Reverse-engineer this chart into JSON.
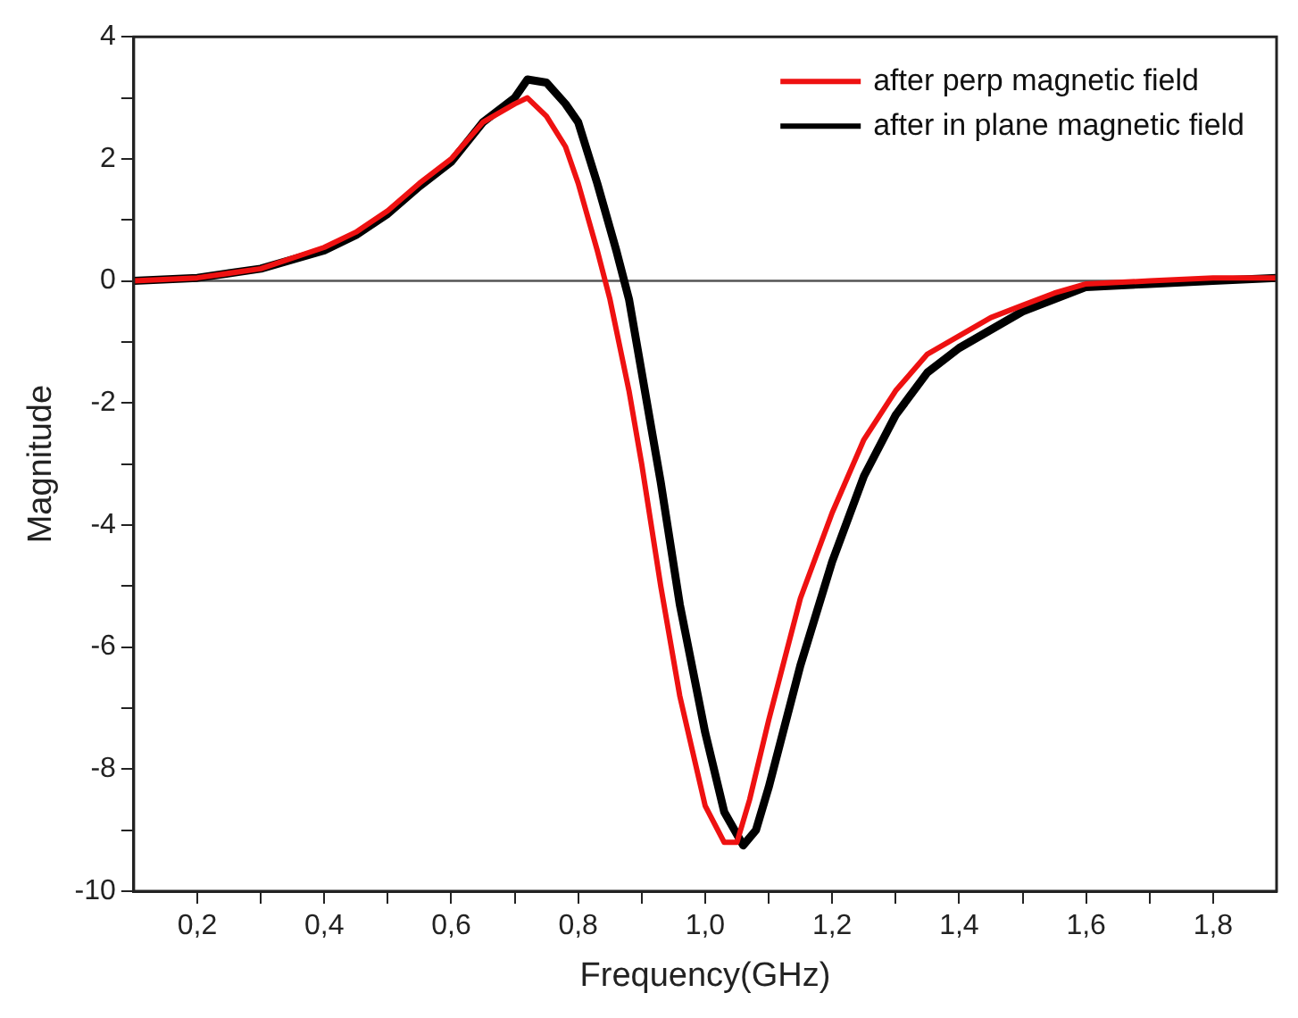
{
  "chart_data": {
    "type": "line",
    "xlabel": "Frequency(GHz)",
    "ylabel": "Magnitude",
    "legend": "top right",
    "grid": false,
    "marker": "none",
    "line_style": "solid",
    "xlim": [
      0.1,
      1.9
    ],
    "ylim": [
      -10,
      4
    ],
    "xticks": [
      {
        "value": 0.2,
        "label": "0,2"
      },
      {
        "value": 0.3,
        "label": null
      },
      {
        "value": 0.4,
        "label": "0,4"
      },
      {
        "value": 0.5,
        "label": null
      },
      {
        "value": 0.6,
        "label": "0,6"
      },
      {
        "value": 0.7,
        "label": null
      },
      {
        "value": 0.8,
        "label": "0,8"
      },
      {
        "value": 0.9,
        "label": null
      },
      {
        "value": 1.0,
        "label": "1,0"
      },
      {
        "value": 1.1,
        "label": null
      },
      {
        "value": 1.2,
        "label": "1,2"
      },
      {
        "value": 1.3,
        "label": null
      },
      {
        "value": 1.4,
        "label": "1,4"
      },
      {
        "value": 1.5,
        "label": null
      },
      {
        "value": 1.6,
        "label": "1,6"
      },
      {
        "value": 1.7,
        "label": null
      },
      {
        "value": 1.8,
        "label": "1,8"
      }
    ],
    "yticks": [
      -10,
      {
        "value": -9,
        "label": null
      },
      -8,
      {
        "value": -7,
        "label": null
      },
      -6,
      {
        "value": -5,
        "label": null
      },
      -4,
      {
        "value": -3,
        "label": null
      },
      -2,
      {
        "value": -1,
        "label": null
      },
      0,
      {
        "value": 1,
        "label": null
      },
      2,
      {
        "value": 3,
        "label": null
      },
      4
    ],
    "ref_lines": [
      {
        "axis": "y",
        "value": 0,
        "color": "#555555",
        "line_style": "solid"
      }
    ],
    "series": [
      {
        "name": "after perp magnetic field",
        "color": "#ee1111",
        "x": [
          0.1,
          0.2,
          0.3,
          0.4,
          0.45,
          0.5,
          0.55,
          0.6,
          0.65,
          0.7,
          0.72,
          0.75,
          0.78,
          0.8,
          0.83,
          0.85,
          0.88,
          0.9,
          0.93,
          0.96,
          1.0,
          1.03,
          1.05,
          1.07,
          1.1,
          1.15,
          1.2,
          1.25,
          1.3,
          1.35,
          1.4,
          1.45,
          1.5,
          1.55,
          1.6,
          1.7,
          1.8,
          1.9
        ],
        "values": [
          0,
          0.05,
          0.2,
          0.55,
          0.8,
          1.15,
          1.6,
          2.0,
          2.6,
          2.9,
          3.0,
          2.7,
          2.2,
          1.6,
          0.5,
          -0.3,
          -1.8,
          -3.0,
          -5,
          -6.8,
          -8.6,
          -9.2,
          -9.2,
          -8.5,
          -7.2,
          -5.2,
          -3.8,
          -2.6,
          -1.8,
          -1.2,
          -0.9,
          -0.6,
          -0.4,
          -0.2,
          -0.05,
          0,
          0.05,
          0.05
        ]
      },
      {
        "name": "after in plane magnetic field",
        "color": "#000000",
        "x": [
          0.1,
          0.2,
          0.3,
          0.4,
          0.45,
          0.5,
          0.55,
          0.6,
          0.65,
          0.7,
          0.72,
          0.75,
          0.78,
          0.8,
          0.83,
          0.86,
          0.88,
          0.9,
          0.93,
          0.96,
          1.0,
          1.03,
          1.06,
          1.08,
          1.1,
          1.15,
          1.2,
          1.25,
          1.3,
          1.35,
          1.4,
          1.45,
          1.5,
          1.55,
          1.6,
          1.7,
          1.8,
          1.9
        ],
        "values": [
          0,
          0.05,
          0.2,
          0.5,
          0.75,
          1.1,
          1.55,
          1.95,
          2.6,
          3.0,
          3.3,
          3.25,
          2.9,
          2.6,
          1.6,
          0.5,
          -0.3,
          -1.5,
          -3.3,
          -5.3,
          -7.4,
          -8.7,
          -9.25,
          -9.0,
          -8.3,
          -6.3,
          -4.6,
          -3.2,
          -2.2,
          -1.5,
          -1.1,
          -0.8,
          -0.5,
          -0.3,
          -0.1,
          -0.05,
          0,
          0.05
        ]
      }
    ]
  }
}
